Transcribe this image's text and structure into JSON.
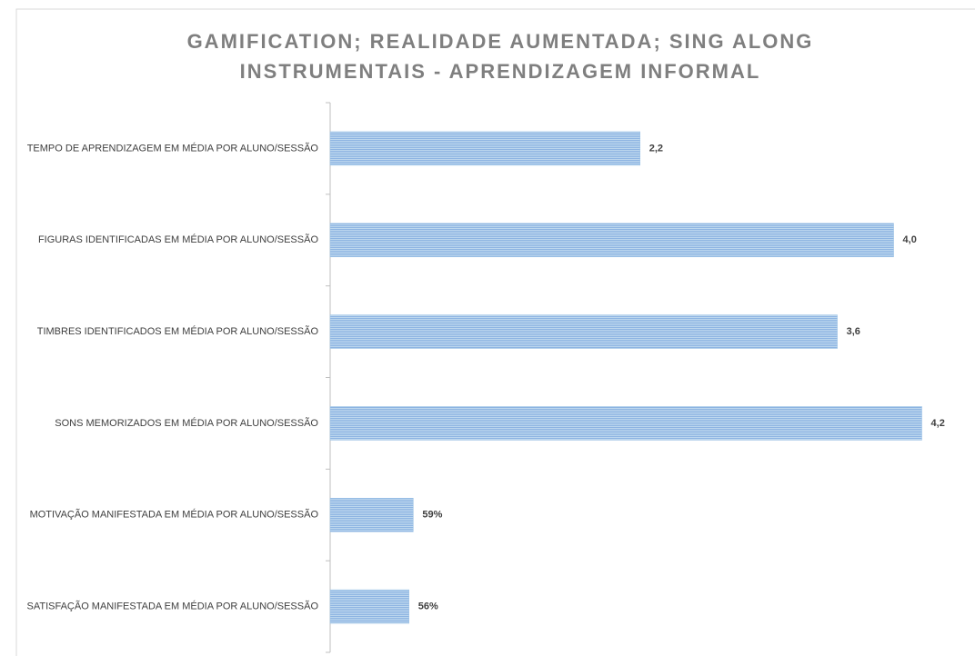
{
  "chart_data": {
    "type": "barh",
    "title": [
      "GAMIFICATION; REALIDADE AUMENTADA; SING ALONG",
      "INSTRUMENTAIS - APRENDIZAGEM INFORMAL"
    ],
    "categories": [
      "TEMPO DE APRENDIZAGEM EM MÉDIA POR ALUNO/SESSÃO",
      "FIGURAS IDENTIFICADAS EM MÉDIA POR ALUNO/SESSÃO",
      "TIMBRES IDENTIFICADOS EM MÉDIA POR ALUNO/SESSÃO",
      "SONS MEMORIZADOS EM MÉDIA POR ALUNO/SESSÃO",
      "MOTIVAÇÃO MANIFESTADA EM MÉDIA POR ALUNO/SESSÃO",
      "SATISFAÇÃO MANIFESTADA EM MÉDIA POR ALUNO/SESSÃO"
    ],
    "values": [
      2.2,
      4.0,
      3.6,
      4.2,
      0.59,
      0.56
    ],
    "value_labels": [
      "2,2",
      "4,0",
      "3,6",
      "4,2",
      "59%",
      "56%"
    ],
    "color": "#9dc3e6",
    "xlim": [
      0,
      4.5
    ]
  }
}
